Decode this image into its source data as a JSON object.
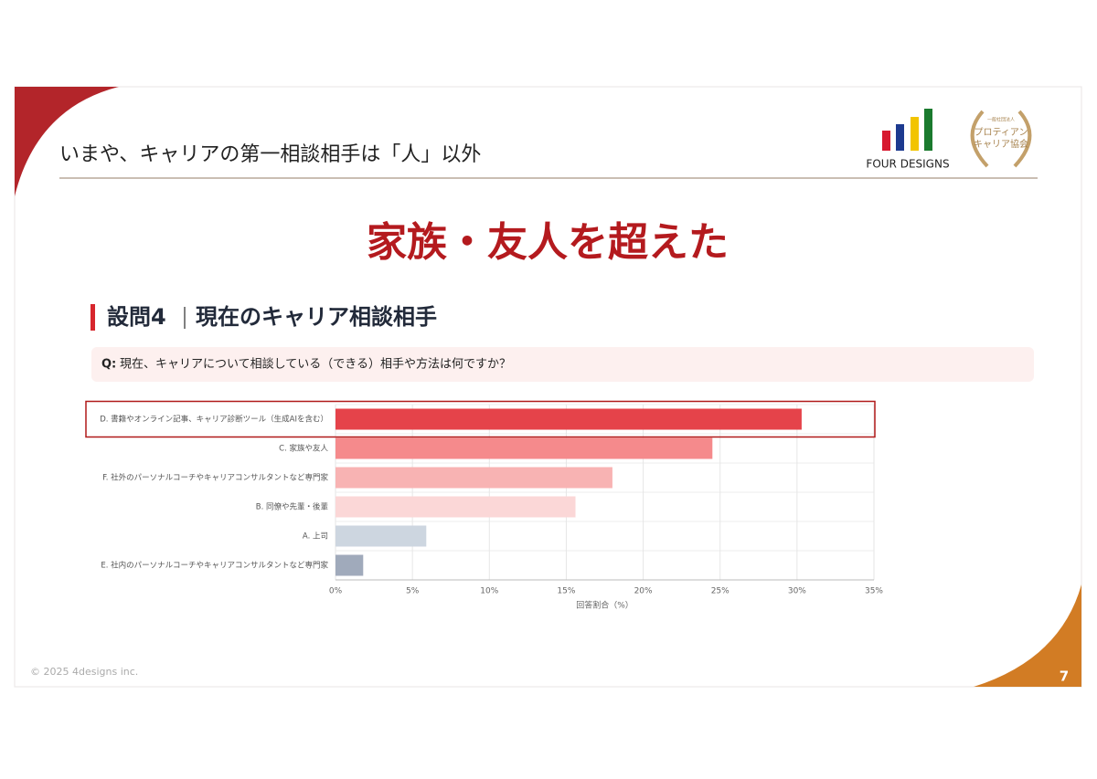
{
  "header": {
    "title": "いまや、キャリアの第一相談相手は「人」以外"
  },
  "logo": {
    "name": "FOUR DESIGNS"
  },
  "badge": {
    "line1": "一般社団法人",
    "line2": "プロティアン",
    "line3": "キャリア協会"
  },
  "headline": "家族・友人を超えた",
  "section": {
    "number": "設問4",
    "title": "現在のキャリア相談相手"
  },
  "question": {
    "prefix": "Q:",
    "text": "現在、キャリアについて相談している（できる）相手や方法は何ですか？"
  },
  "chart_data": {
    "type": "bar",
    "orientation": "horizontal",
    "categories": [
      "D. 書籍やオンライン記事、キャリア診断ツール（生成AIを含む）",
      "C. 家族や友人",
      "F. 社外のパーソナルコーチやキャリアコンサルタントなど専門家",
      "B. 同僚や先輩・後輩",
      "A. 上司",
      "E. 社内のパーソナルコーチやキャリアコンサルタントなど専門家"
    ],
    "values": [
      30.3,
      24.5,
      18.0,
      15.6,
      5.9,
      1.8
    ],
    "colors": [
      "#e5434a",
      "#f58a8c",
      "#f8b3b3",
      "#fbd7d7",
      "#cdd6e0",
      "#a0aabb"
    ],
    "xlim": [
      0,
      35
    ],
    "xticks": [
      {
        "value": 0,
        "label": "0%"
      },
      {
        "value": 5,
        "label": "5%"
      },
      {
        "value": 10,
        "label": "10%"
      },
      {
        "value": 15,
        "label": "15%"
      },
      {
        "value": 20,
        "label": "20%"
      },
      {
        "value": 25,
        "label": "25%"
      },
      {
        "value": 30,
        "label": "30%"
      },
      {
        "value": 35,
        "label": "35%"
      }
    ],
    "xlabel": "回答割合（%）",
    "grid": true,
    "highlight_index": 0
  },
  "footer": {
    "copyright": "© 2025 4designs inc.",
    "page": "7"
  }
}
